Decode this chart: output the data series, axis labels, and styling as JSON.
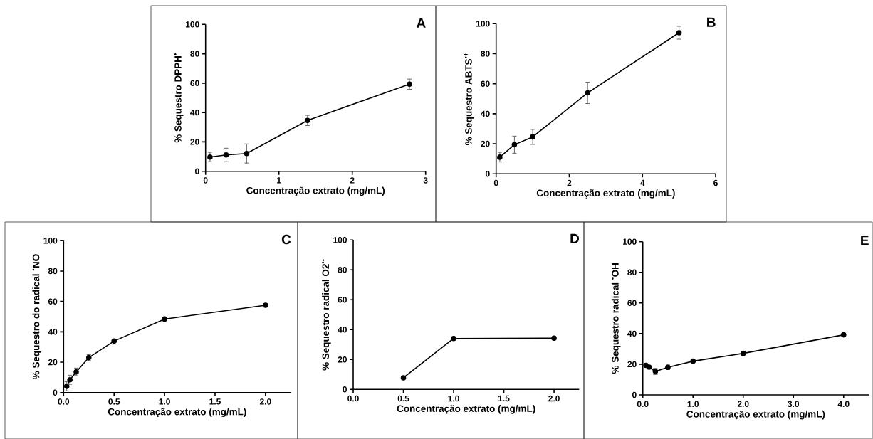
{
  "chart_data": [
    {
      "type": "line",
      "title": "A",
      "xlabel": "Concentração extrato (mg/mL)",
      "ylabel": "% Sequestro DPPH$^{•}$",
      "xlim": [
        0,
        3
      ],
      "xticks": [
        0,
        1,
        2,
        3
      ],
      "ylim": [
        0,
        100
      ],
      "yticks": [
        0,
        20,
        40,
        60,
        80,
        100
      ],
      "marker": "circle",
      "line_style": "solid",
      "series": [
        {
          "color": "#000000",
          "x": [
            0.06,
            0.28,
            0.56,
            1.39,
            2.78
          ],
          "values": [
            9.7,
            11.1,
            12.1,
            34.6,
            59.3
          ],
          "errors": [
            3.2,
            4.6,
            6.5,
            3.5,
            3.5
          ]
        }
      ]
    },
    {
      "type": "line",
      "title": "B",
      "xlabel": "Concentração extrato (mg/mL)",
      "ylabel": "% Sequestro ABTS$^{•+}$",
      "xlim": [
        0,
        6
      ],
      "xticks": [
        0,
        2,
        4,
        6
      ],
      "ylim": [
        0,
        100
      ],
      "yticks": [
        0,
        20,
        40,
        60,
        80,
        100
      ],
      "marker": "circle",
      "line_style": "solid",
      "series": [
        {
          "color": "#000000",
          "x": [
            0.1,
            0.5,
            1.0,
            2.5,
            5.0
          ],
          "values": [
            11.1,
            19.4,
            24.6,
            53.9,
            94
          ],
          "errors": [
            3.2,
            5.7,
            5,
            7.1,
            4.3
          ]
        }
      ]
    },
    {
      "type": "line",
      "title": "C",
      "xlabel": "Concentração extrato (mg/mL)",
      "ylabel": "% Sequestro do radical $^{•}$NO",
      "xlim": [
        0,
        2.25
      ],
      "xticks": [
        {
          "value": 0,
          "label": "0.0"
        },
        {
          "value": 0.5,
          "label": "0.5"
        },
        {
          "value": 1,
          "label": "1.0"
        },
        {
          "value": 1.5,
          "label": "1.5"
        },
        {
          "value": 2,
          "label": "2.0"
        }
      ],
      "ylim": [
        0,
        100
      ],
      "yticks": [
        0,
        20,
        40,
        60,
        80,
        100
      ],
      "marker": "circle",
      "line_style": "solid",
      "series": [
        {
          "color": "#000000",
          "x": [
            0.031,
            0.0625,
            0.125,
            0.25,
            0.5,
            1,
            2
          ],
          "values": [
            4.1,
            8.4,
            13.6,
            23,
            33.9,
            48.4,
            57.5
          ],
          "errors": [
            3,
            3,
            2.5,
            2,
            1,
            1,
            1
          ]
        }
      ]
    },
    {
      "type": "line",
      "title": "D",
      "xlabel": "Concentração extrato (mg/mL)",
      "ylabel": "% Sequestro radical O2$^{•-}$",
      "xlim": [
        0,
        2.25
      ],
      "xticks": [
        {
          "value": 0,
          "label": "0.0"
        },
        {
          "value": 0.5,
          "label": "0.5"
        },
        {
          "value": 1,
          "label": "1.0"
        },
        {
          "value": 1.5,
          "label": "1.5"
        },
        {
          "value": 2,
          "label": "2.0"
        }
      ],
      "ylim": [
        0,
        100
      ],
      "yticks": [
        0,
        20,
        40,
        60,
        80,
        100
      ],
      "marker": "circle",
      "line_style": "solid",
      "series": [
        {
          "color": "#000000",
          "x": [
            0.5,
            1,
            2
          ],
          "values": [
            7.8,
            34.1,
            34.3
          ]
        }
      ]
    },
    {
      "type": "line",
      "title": "E",
      "xlabel": "Concentração extrato (mg/mL)",
      "ylabel": "% Sequestro radical $^{•}$OH",
      "xlim": [
        0,
        4.5
      ],
      "xticks": [
        {
          "value": 0,
          "label": "0.0"
        },
        {
          "value": 1,
          "label": "1.0"
        },
        {
          "value": 2,
          "label": "2.0"
        },
        {
          "value": 3,
          "label": "3.0"
        },
        {
          "value": 4,
          "label": "4.0"
        }
      ],
      "ylim": [
        0,
        100
      ],
      "yticks": [
        0,
        20,
        40,
        60,
        80,
        100
      ],
      "marker": "circle",
      "line_style": "solid",
      "series": [
        {
          "color": "#000000",
          "x": [
            0.0625,
            0.125,
            0.25,
            0.5,
            1,
            2,
            4
          ],
          "values": [
            19.3,
            18.1,
            15.3,
            18,
            22,
            27.1,
            39.2
          ],
          "errors": [
            1,
            1,
            2,
            1.5,
            1,
            1,
            1
          ]
        }
      ]
    }
  ]
}
